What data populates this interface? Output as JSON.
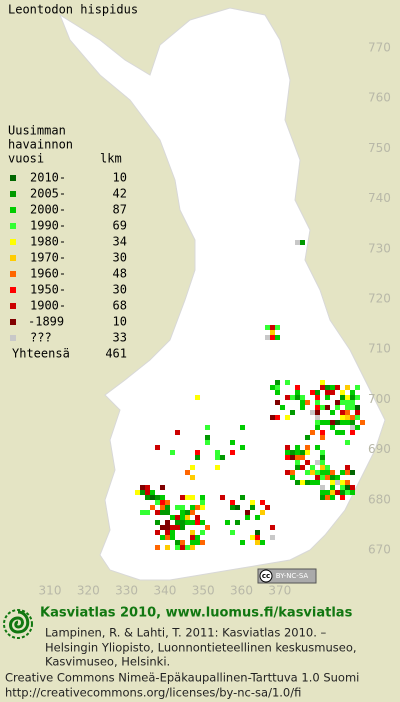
{
  "title": "Leontodon hispidus",
  "legend": {
    "header": [
      "Uusimman",
      "havainnon",
      "vuosi"
    ],
    "count_header": "lkm",
    "rows": [
      {
        "label": "2010-",
        "count": 10,
        "color": "#006600"
      },
      {
        "label": "2005-",
        "count": 42,
        "color": "#009900"
      },
      {
        "label": "2000-",
        "count": 87,
        "color": "#00cc00"
      },
      {
        "label": "1990-",
        "count": 69,
        "color": "#33ff33"
      },
      {
        "label": "1980-",
        "count": 34,
        "color": "#ffff00"
      },
      {
        "label": "1970-",
        "count": 30,
        "color": "#ffcc00"
      },
      {
        "label": "1960-",
        "count": 48,
        "color": "#ff6600"
      },
      {
        "label": "1950-",
        "count": 30,
        "color": "#ff0000"
      },
      {
        "label": "1900-",
        "count": 68,
        "color": "#cc0000"
      },
      {
        "label": "-1899",
        "count": 10,
        "color": "#800000"
      },
      {
        "label": "???",
        "count": 33,
        "color": "#c8c8c8"
      }
    ],
    "total_label": "Yhteensä",
    "total": 461
  },
  "grid": {
    "y_labels": [
      770,
      760,
      750,
      740,
      730,
      720,
      710,
      700,
      690,
      680,
      670
    ],
    "x_labels": [
      310,
      320,
      330,
      340,
      350,
      360,
      370
    ]
  },
  "badge": {
    "cc": "cc",
    "terms": "BY-NC-SA"
  },
  "footer": {
    "heading": "Kasviatlas 2010, www.luomus.fi/kasviatlas",
    "citation": [
      "Lampinen, R. & Lahti, T. 2011: Kasviatlas 2010. –",
      "Helsingin Yliopisto, Luonnontieteellinen keskusmuseo,",
      "Kasvimuseo, Helsinki."
    ],
    "license": "Creative Commons Nimeä-Epäkaupallinen-Tarttuva 1.0 Suomi",
    "url": "http://creativecommons.org/licenses/by-nc-sa/1.0/fi"
  }
}
